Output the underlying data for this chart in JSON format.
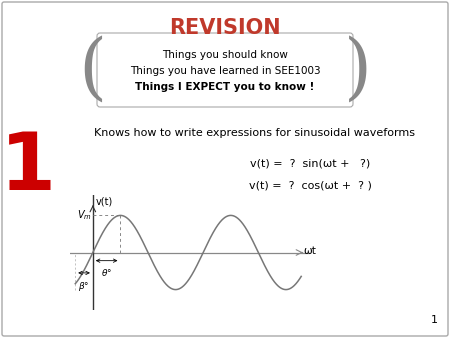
{
  "title": "REVISION",
  "title_color": "#C0392B",
  "box_line1": "Things you should know",
  "box_line2": "Things you have learned in SEE1003",
  "box_line3": "Things I EXPECT you to know !",
  "number_label": "1",
  "number_color": "#CC0000",
  "desc_text": "Knows how to write expressions for sinusoidal waveforms",
  "eq1": "v(t) =  ?  sin(ωt +   ?)",
  "eq2": "v(t) =  ?  cos(ωt +  ? )",
  "bg_color": "#ffffff",
  "wave_color": "#777777",
  "axis_color": "#888888",
  "yaxis_color": "#333333",
  "page_number": "1",
  "xlabel": "ωt",
  "ylabel": "v(t)",
  "border_color": "#aaaaaa"
}
